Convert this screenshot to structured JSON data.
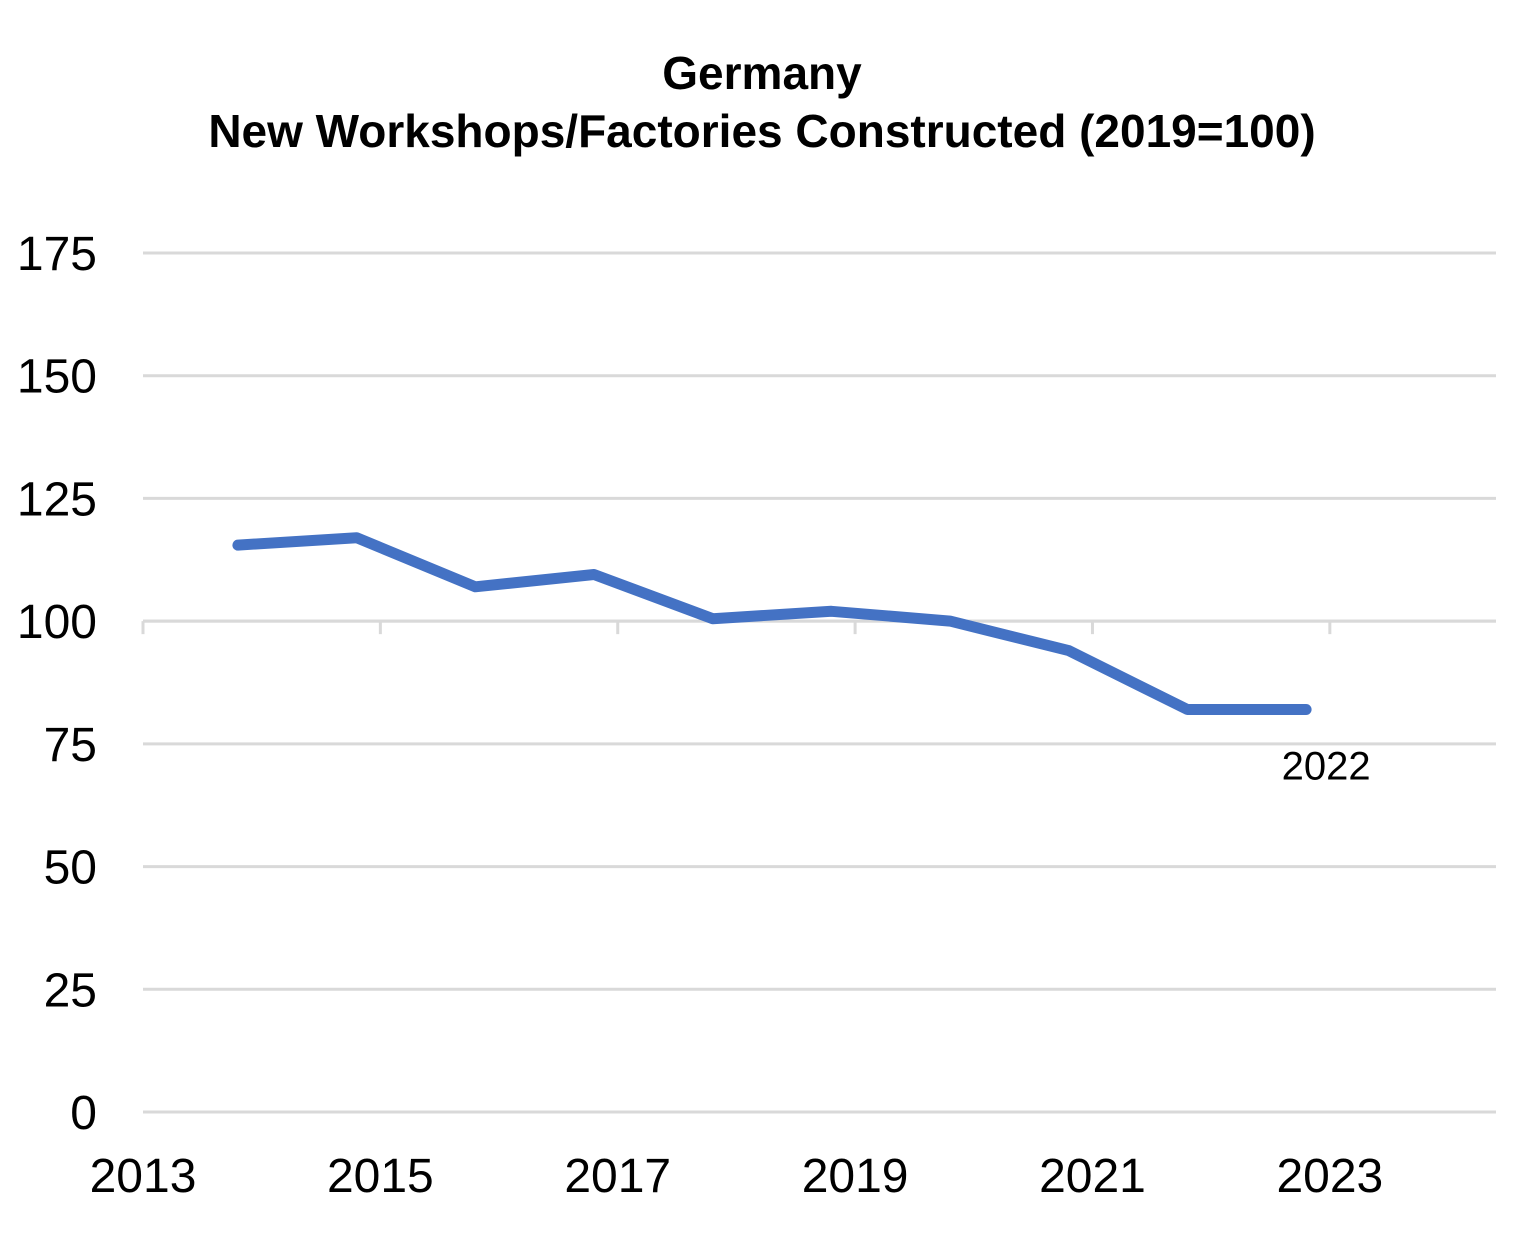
{
  "chart_data": {
    "type": "line",
    "title": "Germany",
    "subtitle": "New Workshops/Factories Constructed (2019=100)",
    "xlabel": "",
    "ylabel": "",
    "x": [
      2013.8,
      2014.8,
      2015.8,
      2016.8,
      2017.8,
      2018.8,
      2019.8,
      2020.8,
      2021.8,
      2022.8
    ],
    "series": [
      {
        "name": "",
        "values": [
          115.5,
          117,
          107,
          109.5,
          100.5,
          102,
          100,
          94,
          82,
          82
        ]
      }
    ],
    "xlim": [
      2013,
      2024.4
    ],
    "ylim": [
      0,
      175
    ],
    "xticks": [
      "2013",
      "2015",
      "2017",
      "2019",
      "2021",
      "2023"
    ],
    "xtick_values": [
      2013,
      2015,
      2017,
      2019,
      2021,
      2023
    ],
    "yticks": [
      "0",
      "25",
      "50",
      "75",
      "100",
      "125",
      "150",
      "175"
    ],
    "ytick_values": [
      0,
      25,
      50,
      75,
      100,
      125,
      150,
      175
    ],
    "annotations": [
      {
        "text": "2022",
        "x": 2022.8,
        "y": 82,
        "position": "below"
      }
    ],
    "grid": "horizontal",
    "line_color": "#4472C4",
    "grid_color": "#D9D9D9",
    "axis_crosses_y": 100
  }
}
